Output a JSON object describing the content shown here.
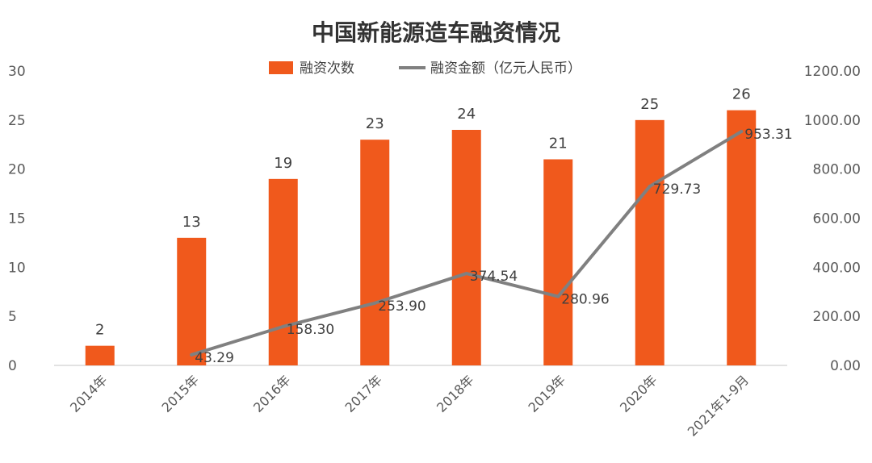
{
  "chart_data": {
    "type": "bar+line",
    "title": "中国新能源造车融资情况",
    "categories": [
      "2014年",
      "2015年",
      "2016年",
      "2017年",
      "2018年",
      "2019年",
      "2020年",
      "2021年1-9月"
    ],
    "series": [
      {
        "name": "融资次数",
        "type": "bar",
        "axis": "left",
        "values": [
          2,
          13,
          19,
          23,
          24,
          21,
          25,
          26
        ],
        "labels": [
          "2",
          "13",
          "19",
          "23",
          "24",
          "21",
          "25",
          "26"
        ],
        "color": "#F0591C"
      },
      {
        "name": "融资金额（亿元人民币）",
        "type": "line",
        "axis": "right",
        "values": [
          null,
          43.29,
          158.3,
          253.9,
          374.54,
          280.96,
          729.73,
          953.31
        ],
        "labels": [
          "",
          "43.29",
          "158.30",
          "253.90",
          "374.54",
          "280.96",
          "729.73",
          "953.31"
        ],
        "color": "#808080"
      }
    ],
    "y_left": {
      "min": 0,
      "max": 30,
      "ticks": [
        "0",
        "5",
        "10",
        "15",
        "20",
        "25",
        "30"
      ]
    },
    "y_right": {
      "min": 0,
      "max": 1200,
      "ticks": [
        "0.00",
        "200.00",
        "400.00",
        "600.00",
        "800.00",
        "1000.00",
        "1200.00"
      ]
    },
    "grid": false,
    "legend_position": "top",
    "xlabel": "",
    "ylabel": ""
  }
}
